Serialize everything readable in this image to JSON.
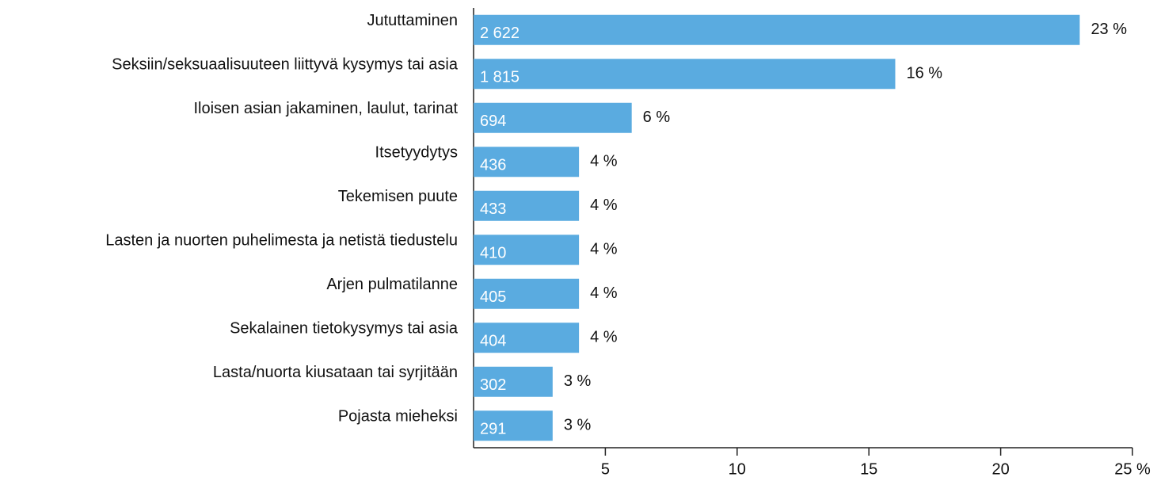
{
  "chart_data": {
    "type": "hbar",
    "categories": [
      "Jututtaminen",
      "Seksiin/seksuaalisuuteen liittyvä kysymys tai asia",
      "Iloisen asian jakaminen, laulut, tarinat",
      "Itsetyydytys",
      "Tekemisen puute",
      "Lasten ja nuorten puhelimesta ja netistä tiedustelu",
      "Arjen pulmatilanne",
      "Sekalainen tietokysymys tai asia",
      "Lasta/nuorta kiusataan tai syrjitään",
      "Pojasta mieheksi"
    ],
    "values": [
      23,
      16,
      6,
      4,
      4,
      4,
      4,
      4,
      3,
      3
    ],
    "value_labels": [
      "23 %",
      "16 %",
      "6 %",
      "4 %",
      "4 %",
      "4 %",
      "4 %",
      "4 %",
      "3 %",
      "3 %"
    ],
    "counts": [
      {
        "value": 2622,
        "label": "2 622"
      },
      {
        "value": 1815,
        "label": "1 815"
      },
      694,
      436,
      433,
      410,
      405,
      404,
      302,
      291
    ],
    "color": "#5aabe0",
    "xlim": [
      0,
      25
    ],
    "xticks": [
      5,
      10,
      15,
      20,
      {
        "value": 25,
        "label": "25 %"
      }
    ]
  }
}
